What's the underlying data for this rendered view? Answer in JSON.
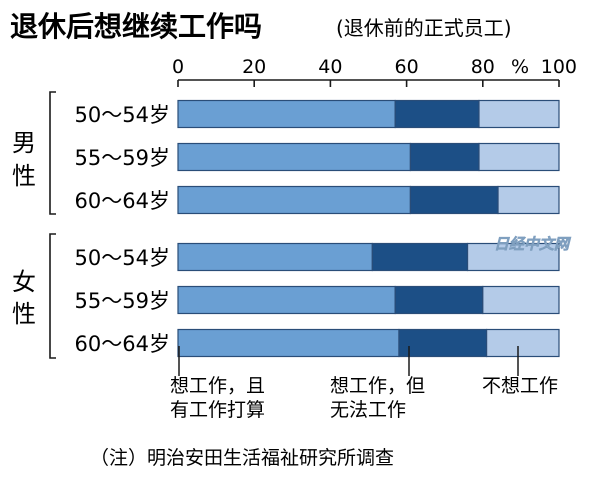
{
  "colors": {
    "want_work_and_plan": "#6a9fd3",
    "want_work_but_cannot": "#1c4f86",
    "not_want_work": "#b4cbe8",
    "bar_outline": "#2a4d78",
    "text": "#1a1a1a"
  },
  "chart_data": {
    "type": "bar",
    "orientation": "horizontal",
    "stacked": true,
    "title": "退休后想继续工作吗",
    "subtitle": "(退休前的正式员工)",
    "x_ticks": [
      "0",
      "20",
      "40",
      "60",
      "80",
      "100"
    ],
    "x_unit": "%",
    "xlim": [
      0,
      100
    ],
    "groups": [
      {
        "label": "男性",
        "categories": [
          "50～54岁",
          "55～59岁",
          "60～64岁"
        ]
      },
      {
        "label": "女性",
        "categories": [
          "50～54岁",
          "55～59岁",
          "60～64岁"
        ]
      }
    ],
    "series": [
      {
        "name": "想工作，且有工作打算",
        "values": [
          57,
          61,
          61,
          51,
          57,
          58
        ]
      },
      {
        "name": "想工作，但无法工作",
        "values": [
          22,
          18,
          23,
          25,
          23,
          23
        ]
      },
      {
        "name": "不想工作",
        "values": [
          21,
          21,
          16,
          24,
          20,
          19
        ]
      }
    ],
    "legend_placement": "bottom",
    "note": "（注）明治安田生活福祉研究所调查"
  },
  "legend": {
    "item1_line1": "想工作，且",
    "item1_line2": "有工作打算",
    "item2_line1": "想工作，但",
    "item2_line2": "无法工作",
    "item3_line1": "不想工作"
  },
  "watermark": "日经中文网"
}
